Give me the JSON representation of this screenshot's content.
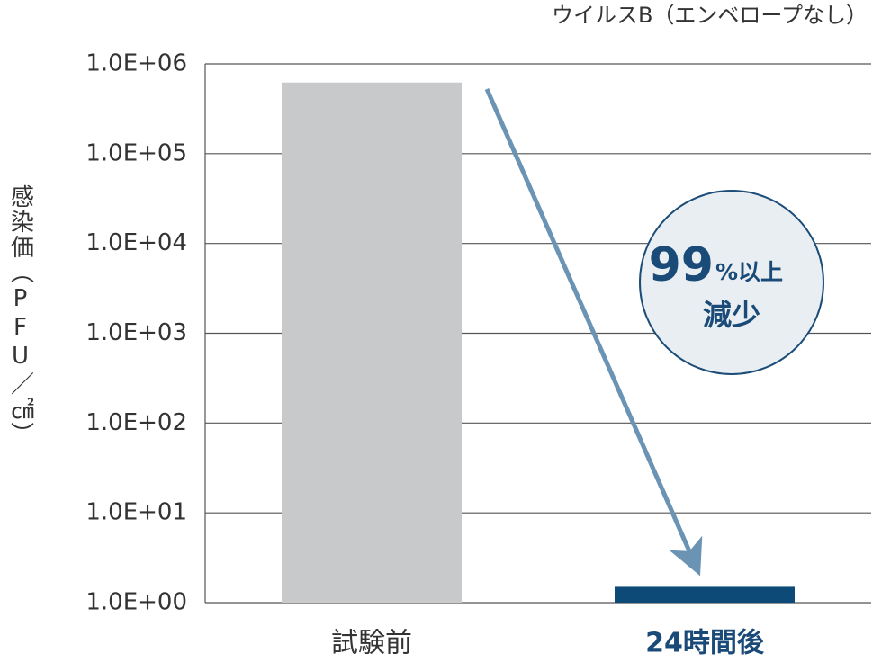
{
  "chart_data": {
    "type": "bar",
    "title": "ウイルスB（エンベロープなし）",
    "y_label": "感染価（PFU／㎠）",
    "categories": [
      "試験前",
      "24時間後"
    ],
    "values": [
      620000,
      1.5
    ],
    "colors": [
      "#c8c9cb",
      "#0d4a78"
    ],
    "category_label_colors": [
      "#333333",
      "#1a4a78"
    ],
    "log_scale": true,
    "ylim": [
      1,
      1000000
    ],
    "yticks": [
      {
        "value": 1,
        "label": "1.0E+00"
      },
      {
        "value": 10,
        "label": "1.0E+01"
      },
      {
        "value": 100,
        "label": "1.0E+02"
      },
      {
        "value": 1000,
        "label": "1.0E+03"
      },
      {
        "value": 10000,
        "label": "1.0E+04"
      },
      {
        "value": 100000,
        "label": "1.0E+05"
      },
      {
        "value": 1000000,
        "label": "1.0E+06"
      }
    ],
    "grid": true,
    "annotation": {
      "value_text": "99",
      "unit_text": "%以上",
      "text": "減少"
    }
  }
}
